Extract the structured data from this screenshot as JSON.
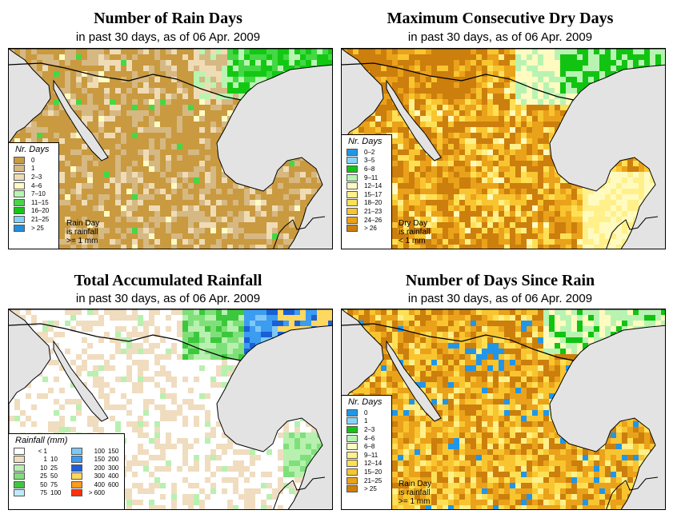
{
  "panels": [
    {
      "title": "Number of Rain Days",
      "subtitle": "in past 30 days, as of  06 Apr. 2009",
      "legend_title": "Nr. Days",
      "note": [
        "Rain Day",
        "is rainfall",
        ">= 1 mm"
      ],
      "legend": [
        {
          "label": "0",
          "color": "#c99a3f"
        },
        {
          "label": "1",
          "color": "#d6b882"
        },
        {
          "label": "2–3",
          "color": "#efdcb5"
        },
        {
          "label": "4–6",
          "color": "#fffbc3"
        },
        {
          "label": "7–10",
          "color": "#b8f5b0"
        },
        {
          "label": "11–15",
          "color": "#44d844"
        },
        {
          "label": "16–20",
          "color": "#13c813"
        },
        {
          "label": "21–25",
          "color": "#7fd3f5"
        },
        {
          "label": "> 25",
          "color": "#1f8fe0"
        }
      ]
    },
    {
      "title": "Maximum Consecutive Dry Days",
      "subtitle": "in past 30 days, as of  06 Apr. 2009",
      "legend_title": "Nr. Days",
      "note": [
        "Dry Day",
        "is rainfall",
        "< 1 mm"
      ],
      "legend": [
        {
          "label": "0–2",
          "color": "#2196e8"
        },
        {
          "label": "3–5",
          "color": "#88d4f7"
        },
        {
          "label": "6–8",
          "color": "#12c412"
        },
        {
          "label": "9–11",
          "color": "#b9f3b2"
        },
        {
          "label": "12–14",
          "color": "#fffbc0"
        },
        {
          "label": "15–17",
          "color": "#fff08a"
        },
        {
          "label": "18–20",
          "color": "#ffe055"
        },
        {
          "label": "21–23",
          "color": "#f8c530"
        },
        {
          "label": "24–26",
          "color": "#eaa21a"
        },
        {
          "label": "> 26",
          "color": "#cc7f0d"
        }
      ]
    },
    {
      "title": "Total Accumulated Rainfall",
      "subtitle": "in past 30 days, as of  06 Apr. 2009",
      "legend_title": "Rainfall (mm)",
      "legend_left": [
        {
          "low": "< 1",
          "high": "",
          "color": "#ffffff"
        },
        {
          "low": "1",
          "high": "10",
          "color": "#f0ddbf"
        },
        {
          "low": "10",
          "high": "25",
          "color": "#b8f0b0"
        },
        {
          "low": "25",
          "high": "50",
          "color": "#7fe07a"
        },
        {
          "low": "50",
          "high": "75",
          "color": "#3cc83c"
        },
        {
          "low": "75",
          "high": "100",
          "color": "#bfeaff"
        }
      ],
      "legend_right": [
        {
          "low": "100",
          "high": "150",
          "color": "#7fc8f5"
        },
        {
          "low": "150",
          "high": "200",
          "color": "#3b9cf0"
        },
        {
          "low": "200",
          "high": "300",
          "color": "#1a5fd8"
        },
        {
          "low": "300",
          "high": "400",
          "color": "#ffd860"
        },
        {
          "low": "400",
          "high": "600",
          "color": "#ff9a20"
        },
        {
          "low": "> 600",
          "high": "",
          "color": "#ff3010"
        }
      ]
    },
    {
      "title": "Number of Days Since Rain",
      "subtitle": "in past 30 days, as of  06 Apr. 2009",
      "legend_title": "Nr. Days",
      "note": [
        "Rain Day",
        "is rainfall",
        ">= 1 mm"
      ],
      "legend": [
        {
          "label": "0",
          "color": "#2196e8"
        },
        {
          "label": "1",
          "color": "#88d4f7"
        },
        {
          "label": "2–3",
          "color": "#12c412"
        },
        {
          "label": "4–6",
          "color": "#b9f3b2"
        },
        {
          "label": "6–8",
          "color": "#fffbc0"
        },
        {
          "label": "9–11",
          "color": "#fff08a"
        },
        {
          "label": "12–14",
          "color": "#ffe055"
        },
        {
          "label": "15–20",
          "color": "#f8c530"
        },
        {
          "label": "21–25",
          "color": "#eaa21a"
        },
        {
          "label": "> 25",
          "color": "#cc7f0d"
        }
      ]
    }
  ],
  "colors": {
    "ocean": "#e3e3e3",
    "border": "#000000"
  }
}
